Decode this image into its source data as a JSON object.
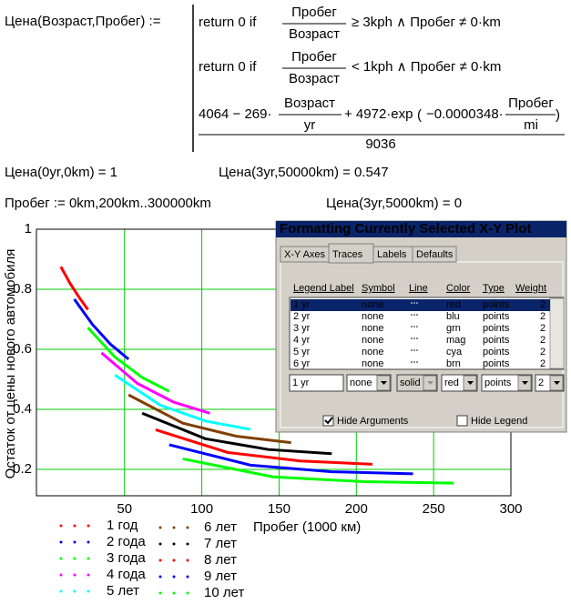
{
  "formula": {
    "name": "Цена(Возраст,Пробег) :=",
    "return": "return  0   if",
    "num": "Пробег",
    "den": "Возраст",
    "cond1": "≥  3kph ∧ Пробег ≠ 0·km",
    "cond2": "<  1kph ∧ Пробег ≠ 0·km",
    "part1": "4064 − 269·",
    "den_yr": "yr",
    "part2": "+ 4972·exp",
    "part3": "−0.0000348·",
    "den_mi": "mi",
    "divisor": "9036"
  },
  "results": [
    "Цена(0yr,0km) = 1",
    "Цена(3yr,50000km) = 0.547",
    "Пробег := 0km,200km..300000km",
    "Цена(3yr,5000km) = 0"
  ],
  "chart_data": {
    "type": "line",
    "x_label": "Пробег (1000 км)",
    "y_label": "Остаток от цены нового автомобиля",
    "xlim": [
      -7,
      300
    ],
    "ylim": [
      0.112,
      1
    ],
    "xticks": [
      50,
      100,
      150,
      200,
      250,
      300
    ],
    "yticks": [
      0.2,
      0.4,
      0.6,
      0.8,
      1
    ],
    "grid": true,
    "series": [
      {
        "name": "1 год",
        "color": "#ff0000",
        "x": [
          8.8,
          14.6,
          20.5,
          26.3
        ],
        "values": [
          0.875,
          0.821,
          0.774,
          0.732
        ]
      },
      {
        "name": "2 года",
        "color": "#0000ff",
        "x": [
          17.5,
          29.2,
          40.9,
          52.6
        ],
        "values": [
          0.767,
          0.683,
          0.617,
          0.567
        ]
      },
      {
        "name": "3 года",
        "color": "#00ff00",
        "x": [
          26.3,
          43.8,
          61.4,
          78.9
        ],
        "values": [
          0.672,
          0.574,
          0.506,
          0.46
        ]
      },
      {
        "name": "4 года",
        "color": "#ff00ff",
        "x": [
          35.1,
          58.4,
          81.8,
          105.2
        ],
        "values": [
          0.588,
          0.486,
          0.424,
          0.387
        ]
      },
      {
        "name": "5 лет",
        "color": "#00ffff",
        "x": [
          43.8,
          73.1,
          102.3,
          131.5
        ],
        "values": [
          0.514,
          0.414,
          0.361,
          0.333
        ]
      },
      {
        "name": "6 лет",
        "color": "#804000",
        "x": [
          52.6,
          87.7,
          122.7,
          157.8
        ],
        "values": [
          0.448,
          0.354,
          0.31,
          0.289
        ]
      },
      {
        "name": "7 лет",
        "color": "#000000",
        "x": [
          61.4,
          102.3,
          143.2,
          184.1
        ],
        "values": [
          0.387,
          0.302,
          0.266,
          0.252
        ]
      },
      {
        "name": "8 лет",
        "color": "#ff0000",
        "x": [
          70.1,
          116.9,
          163.6,
          210.4
        ],
        "values": [
          0.332,
          0.256,
          0.228,
          0.217
        ]
      },
      {
        "name": "9 лет",
        "color": "#0000ff",
        "x": [
          78.9,
          131.5,
          184.1,
          236.7
        ],
        "values": [
          0.282,
          0.214,
          0.192,
          0.185
        ]
      },
      {
        "name": "10 лет",
        "color": "#00ff00",
        "x": [
          87.7,
          146.1,
          204.5,
          263.0
        ],
        "values": [
          0.235,
          0.175,
          0.159,
          0.154
        ]
      }
    ]
  },
  "dialog": {
    "title": "Formatting Currently Selected X-Y Plot",
    "tabs": [
      "X-Y Axes",
      "Traces",
      "Labels",
      "Defaults"
    ],
    "columns": [
      "Legend Label",
      "Symbol",
      "Line",
      "Color",
      "Type",
      "Weight"
    ],
    "rows": [
      [
        "1 yr",
        "none",
        "red",
        "points",
        "2"
      ],
      [
        "2 yr",
        "none",
        "blu",
        "points",
        "2"
      ],
      [
        "3 yr",
        "none",
        "grn",
        "points",
        "2"
      ],
      [
        "4 yr",
        "none",
        "mag",
        "points",
        "2"
      ],
      [
        "5 yr",
        "none",
        "cya",
        "points",
        "2"
      ],
      [
        "6 yr",
        "none",
        "brn",
        "points",
        "2"
      ]
    ],
    "edit": [
      "1 yr",
      "none",
      "solid",
      "red",
      "points",
      "2"
    ],
    "checkboxes": [
      {
        "label": "Hide Arguments",
        "checked": true
      },
      {
        "label": "Hide Legend",
        "checked": false
      }
    ]
  }
}
